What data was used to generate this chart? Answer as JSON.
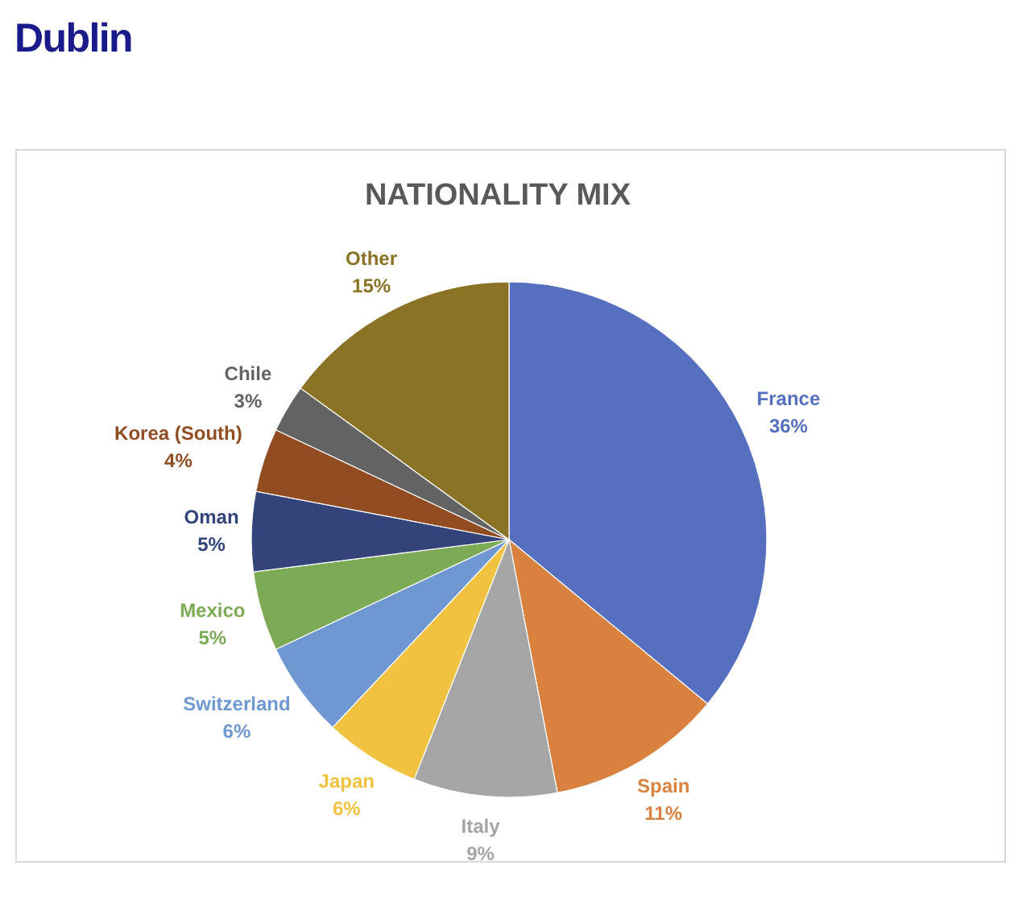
{
  "chart_data": {
    "type": "pie",
    "title": "Dublin",
    "subtitle": "NATIONALITY MIX",
    "categories": [
      "France",
      "Spain",
      "Italy",
      "Japan",
      "Switzerland",
      "Mexico",
      "Oman",
      "Korea (South)",
      "Chile",
      "Other"
    ],
    "values": [
      36,
      11,
      9,
      6,
      6,
      5,
      5,
      4,
      3,
      15
    ],
    "value_labels": [
      "36%",
      "11%",
      "9%",
      "6%",
      "6%",
      "5%",
      "5%",
      "4%",
      "3%",
      "15%"
    ],
    "colors": [
      "#5670bf",
      "#d9823f",
      "#a5a5a5",
      "#f0c23f",
      "#6f98d2",
      "#7caa55",
      "#32447a",
      "#914c22",
      "#636363",
      "#8b7325"
    ]
  }
}
